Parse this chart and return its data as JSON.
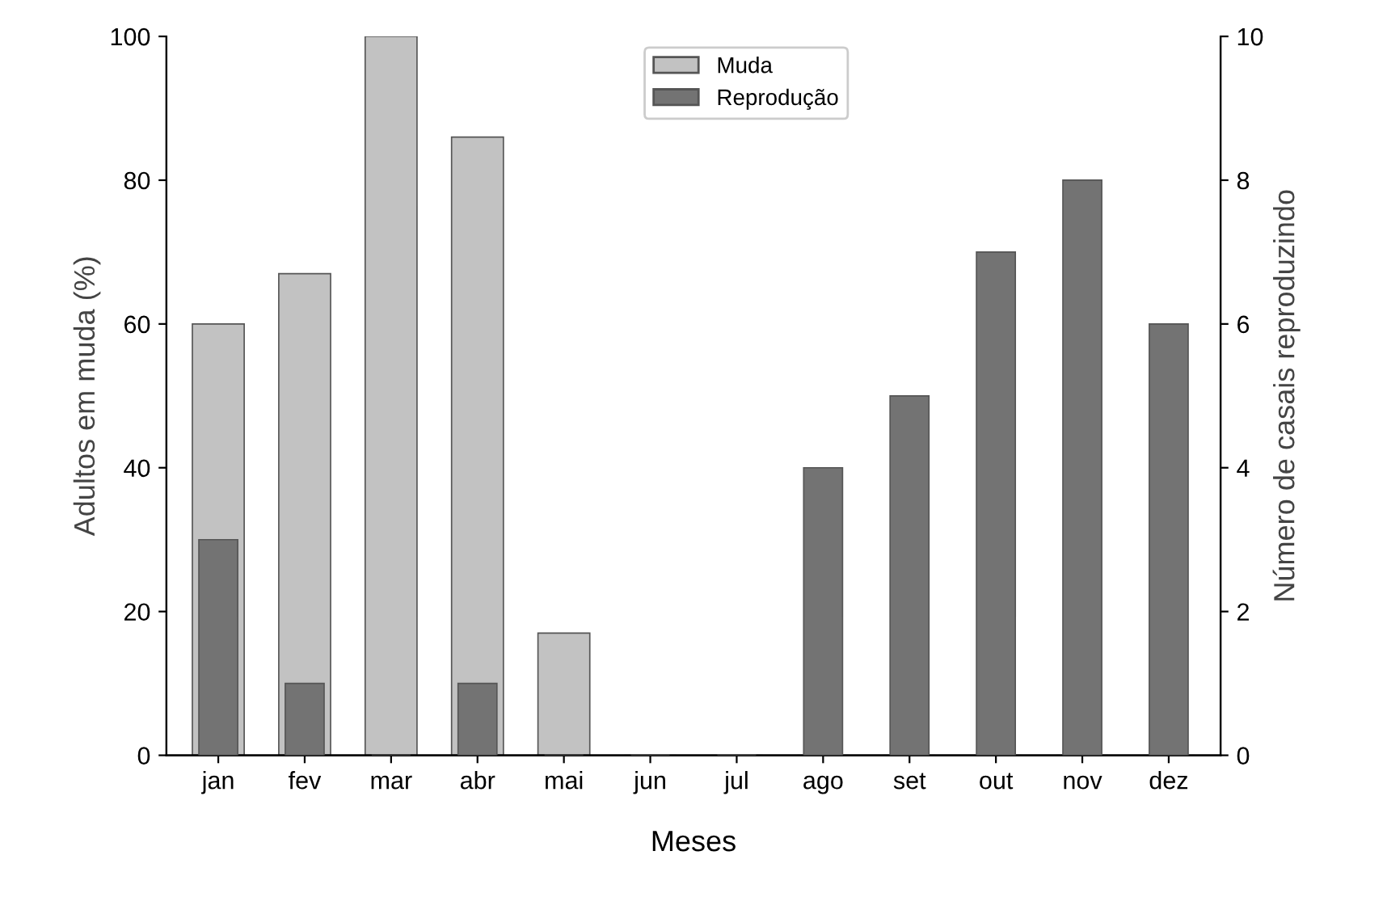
{
  "chart_data": {
    "type": "bar",
    "xlabel": "Meses",
    "ylabel": "Adultos em muda (%)",
    "y2label": "Número de casais reproduzindo",
    "categories": [
      "jan",
      "fev",
      "mar",
      "abr",
      "mai",
      "jun",
      "jul",
      "ago",
      "set",
      "out",
      "nov",
      "dez"
    ],
    "series": [
      {
        "name": "Muda",
        "color": "#c2c2c2",
        "values": [
          60,
          67,
          100,
          86,
          17,
          0,
          0,
          0,
          0,
          0,
          0,
          0
        ]
      },
      {
        "name": "Reprodução",
        "color": "#737373",
        "axis": "y2",
        "values": [
          3,
          1,
          0,
          1,
          0,
          0,
          0,
          4,
          5,
          7,
          8,
          6
        ]
      }
    ],
    "ylim": [
      0,
      100
    ],
    "yticks": [
      0,
      20,
      40,
      60,
      80,
      100
    ],
    "y2lim": [
      0,
      10
    ],
    "y2ticks": [
      0,
      2,
      4,
      6,
      8,
      10
    ],
    "legend": "top",
    "grid": false
  }
}
